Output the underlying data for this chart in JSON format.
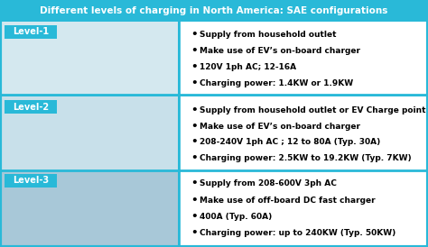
{
  "title": "Different levels of charging in North America: SAE configurations",
  "title_bg": "#29B9D8",
  "title_color": "#FFFFFF",
  "levels": [
    "Level-1",
    "Level-2",
    "Level-3"
  ],
  "level_label_bg": "#29B9D8",
  "level_label_color": "#FFFFFF",
  "left_col_colors": [
    "#D4E8EF",
    "#C8E0EA",
    "#A8C8D8"
  ],
  "right_col_color": "#FFFFFF",
  "outer_bg": "#29B9D8",
  "divider_color": "#29B9D8",
  "bullet_points": [
    [
      "Supply from household outlet",
      "Make use of EV’s on-board charger",
      "120V 1ph AC; 12-16A",
      "Charging power: 1.4KW or 1.9KW"
    ],
    [
      "Supply from household outlet or EV Charge point",
      "Make use of EV’s on-board charger",
      "208-240V 1ph AC ; 12 to 80A (Typ. 30A)",
      "Charging power: 2.5KW to 19.2KW (Typ. 7KW)"
    ],
    [
      "Supply from 208-600V 3ph AC",
      "Make use of off-board DC fast charger",
      "400A (Typ. 60A)",
      "Charging power: up to 240KW (Typ. 50KW)"
    ]
  ],
  "text_color": "#000000",
  "font_size_title": 7.5,
  "font_size_level": 7.0,
  "font_size_bullet": 6.5,
  "figw": 4.74,
  "figh": 2.74,
  "dpi": 100
}
